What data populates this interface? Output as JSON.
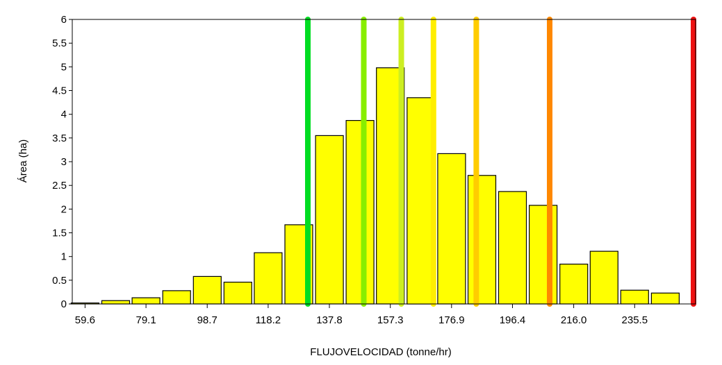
{
  "chart_data": {
    "type": "bar",
    "xlabel": "FLUJOVELOCIDAD (tonne/hr)",
    "ylabel": "Área (ha)",
    "x_tick_labels": [
      "59.6",
      "79.1",
      "98.7",
      "118.2",
      "137.8",
      "157.3",
      "176.9",
      "196.4",
      "216.0",
      "235.5"
    ],
    "x_tick_values": [
      59.6,
      79.1,
      98.7,
      118.2,
      137.8,
      157.3,
      176.9,
      196.4,
      216.0,
      235.5
    ],
    "y_tick_labels": [
      "0",
      "0.5",
      "1",
      "1.5",
      "2",
      "2.5",
      "3",
      "3.5",
      "4",
      "4.5",
      "5",
      "5.5",
      "6"
    ],
    "xlim": [
      55.5,
      255.0
    ],
    "ylim": [
      0,
      6
    ],
    "bin_width": 9.78,
    "bar_color": "#ffff00",
    "bar_edge_color": "#000000",
    "bins": [
      {
        "x": 59.6,
        "value": 0.02
      },
      {
        "x": 69.4,
        "value": 0.07
      },
      {
        "x": 79.1,
        "value": 0.13
      },
      {
        "x": 88.9,
        "value": 0.28
      },
      {
        "x": 98.7,
        "value": 0.58
      },
      {
        "x": 108.5,
        "value": 0.46
      },
      {
        "x": 118.2,
        "value": 1.08
      },
      {
        "x": 128.0,
        "value": 1.67
      },
      {
        "x": 137.8,
        "value": 3.55
      },
      {
        "x": 147.6,
        "value": 3.87
      },
      {
        "x": 157.3,
        "value": 4.98
      },
      {
        "x": 167.1,
        "value": 4.35
      },
      {
        "x": 176.9,
        "value": 3.17
      },
      {
        "x": 186.6,
        "value": 2.71
      },
      {
        "x": 196.4,
        "value": 2.37
      },
      {
        "x": 206.2,
        "value": 2.08
      },
      {
        "x": 216.0,
        "value": 0.84
      },
      {
        "x": 225.7,
        "value": 1.11
      },
      {
        "x": 235.5,
        "value": 0.29
      },
      {
        "x": 245.3,
        "value": 0.23
      }
    ],
    "vlines": [
      {
        "x": 130.9,
        "color": "#00dd22"
      },
      {
        "x": 148.8,
        "color": "#88ee00"
      },
      {
        "x": 160.8,
        "color": "#ccee22"
      },
      {
        "x": 171.1,
        "color": "#ffee00"
      },
      {
        "x": 184.8,
        "color": "#ffcc00"
      },
      {
        "x": 208.3,
        "color": "#ff8800"
      },
      {
        "x": 255.0,
        "color": "#ee1111"
      }
    ],
    "grid": false,
    "legend": "none"
  }
}
